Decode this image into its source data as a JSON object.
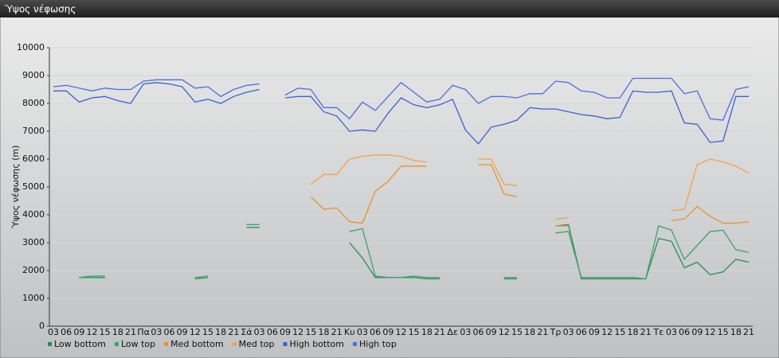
{
  "panel_title": "Ύψος νέφωσης",
  "chart_data": {
    "type": "line",
    "y_label": "Ύψος νέφωσης (m)",
    "categories": [
      "03",
      "06",
      "09",
      "12",
      "15",
      "18",
      "21",
      "Πα",
      "03",
      "06",
      "09",
      "12",
      "15",
      "18",
      "21",
      "Σά",
      "03",
      "06",
      "09",
      "12",
      "15",
      "18",
      "21",
      "Κυ",
      "03",
      "06",
      "09",
      "12",
      "15",
      "18",
      "21",
      "Δε",
      "03",
      "06",
      "09",
      "12",
      "15",
      "18",
      "21",
      "Τρ",
      "03",
      "06",
      "09",
      "12",
      "15",
      "18",
      "21",
      "Τε",
      "03",
      "06",
      "09",
      "12",
      "15",
      "18",
      "21"
    ],
    "ylim": [
      0,
      10000
    ],
    "yticks": [
      0,
      1000,
      2000,
      3000,
      4000,
      5000,
      6000,
      7000,
      8000,
      9000,
      10000
    ],
    "grid": true,
    "series": [
      {
        "name": "Low bottom",
        "color": "#2e8b57",
        "values": [
          null,
          null,
          1750,
          1750,
          1750,
          null,
          null,
          null,
          null,
          null,
          null,
          1700,
          1750,
          null,
          null,
          3550,
          3550,
          null,
          null,
          null,
          null,
          null,
          null,
          3000,
          2450,
          1750,
          1750,
          1750,
          1750,
          1700,
          1700,
          null,
          null,
          null,
          null,
          1700,
          1700,
          null,
          null,
          3600,
          3650,
          1700,
          1700,
          1700,
          1700,
          1700,
          1700,
          3150,
          3050,
          2100,
          2300,
          1850,
          1950,
          2400,
          2300
        ]
      },
      {
        "name": "Low top",
        "color": "#3aa565",
        "values": [
          null,
          null,
          1750,
          1800,
          1800,
          null,
          null,
          null,
          null,
          null,
          null,
          1750,
          1800,
          null,
          null,
          3650,
          3650,
          null,
          null,
          null,
          null,
          null,
          null,
          3400,
          3500,
          1800,
          1750,
          1750,
          1800,
          1750,
          1750,
          null,
          null,
          null,
          null,
          1750,
          1750,
          null,
          null,
          3350,
          3400,
          1750,
          1750,
          1750,
          1750,
          1750,
          1700,
          3600,
          3450,
          2400,
          2900,
          3400,
          3450,
          2750,
          2650
        ]
      },
      {
        "name": "Med bottom",
        "color": "#e8922e",
        "values": [
          null,
          null,
          null,
          null,
          null,
          null,
          null,
          null,
          null,
          null,
          null,
          null,
          null,
          null,
          null,
          null,
          null,
          null,
          null,
          null,
          4650,
          4200,
          4250,
          3750,
          3700,
          4850,
          5200,
          5750,
          5750,
          5750,
          null,
          null,
          null,
          5800,
          5800,
          4750,
          4650,
          null,
          null,
          3600,
          3600,
          null,
          null,
          null,
          null,
          null,
          null,
          null,
          3800,
          3850,
          4300,
          3950,
          3700,
          3700,
          3750
        ]
      },
      {
        "name": "Med top",
        "color": "#f0a445",
        "values": [
          null,
          null,
          null,
          null,
          null,
          null,
          null,
          null,
          null,
          null,
          null,
          null,
          null,
          null,
          null,
          null,
          null,
          null,
          null,
          null,
          5100,
          5450,
          5450,
          6000,
          6100,
          6150,
          6150,
          6100,
          5950,
          5900,
          null,
          null,
          null,
          6000,
          6000,
          5100,
          5050,
          null,
          null,
          3850,
          3900,
          null,
          null,
          null,
          null,
          null,
          null,
          null,
          4150,
          4200,
          5800,
          6000,
          5900,
          5750,
          5500
        ]
      },
      {
        "name": "High bottom",
        "color": "#3a62d0",
        "values": [
          8450,
          8450,
          8050,
          8200,
          8250,
          8100,
          8000,
          8700,
          8750,
          8700,
          8600,
          8050,
          8150,
          8000,
          8250,
          8400,
          8500,
          null,
          8200,
          8250,
          8250,
          7700,
          7550,
          7000,
          7050,
          7000,
          7650,
          8200,
          7950,
          7850,
          7950,
          8150,
          7050,
          6550,
          7150,
          7250,
          7400,
          7850,
          7800,
          7800,
          7700,
          7600,
          7550,
          7450,
          7500,
          8450,
          8400,
          8400,
          8450,
          7300,
          7250,
          6600,
          6650,
          8250,
          8250
        ]
      },
      {
        "name": "High top",
        "color": "#4a70dc",
        "values": [
          8600,
          8650,
          8550,
          8450,
          8550,
          8500,
          8500,
          8800,
          8850,
          8850,
          8850,
          8550,
          8600,
          8250,
          8500,
          8650,
          8700,
          null,
          8300,
          8550,
          8500,
          7850,
          7850,
          7450,
          8050,
          7750,
          8250,
          8750,
          8400,
          8050,
          8150,
          8650,
          8500,
          8000,
          8250,
          8250,
          8200,
          8350,
          8350,
          8800,
          8750,
          8450,
          8400,
          8200,
          8200,
          8900,
          8900,
          8900,
          8900,
          8350,
          8450,
          7450,
          7400,
          8500,
          8600
        ]
      }
    ]
  }
}
